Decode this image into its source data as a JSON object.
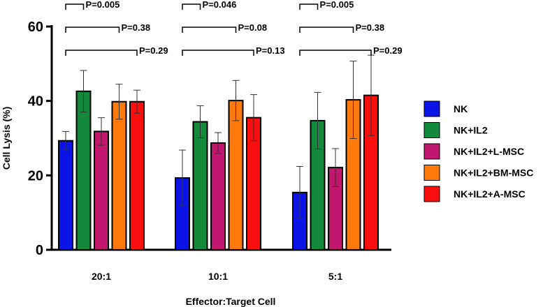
{
  "chart_data": {
    "type": "bar",
    "title": "",
    "xlabel": "Effector:Target Cell",
    "ylabel": "Cell Lysis (%)",
    "ylim": [
      0,
      60
    ],
    "yticks": [
      0,
      20,
      40,
      60
    ],
    "grid": false,
    "legend_position": "right",
    "categories": [
      "20:1",
      "10:1",
      "5:1"
    ],
    "series": [
      {
        "name": "NK",
        "color": "#0a14e6",
        "values": [
          29.3,
          19.3,
          15.4
        ],
        "errors": [
          2.5,
          7.5,
          7.0
        ]
      },
      {
        "name": "NK+IL2",
        "color": "#138a3b",
        "values": [
          42.6,
          34.4,
          34.7
        ],
        "errors": [
          5.6,
          4.3,
          7.6
        ]
      },
      {
        "name": "NK+IL2+L-MSC",
        "color": "#c2176f",
        "values": [
          31.8,
          28.7,
          22.1
        ],
        "errors": [
          3.7,
          2.8,
          5.1
        ]
      },
      {
        "name": "NK+IL2+BM-MSC",
        "color": "#ff7a0a",
        "values": [
          39.8,
          40.1,
          40.3
        ],
        "errors": [
          4.7,
          5.4,
          10.4
        ]
      },
      {
        "name": "NK+IL2+A-MSC",
        "color": "#fb0e0e",
        "values": [
          39.8,
          35.5,
          41.5
        ],
        "errors": [
          3.1,
          6.2,
          10.8
        ]
      }
    ],
    "annotations": [
      {
        "category": "20:1",
        "from_series": 0,
        "to_series": 1,
        "text": "P=0.005"
      },
      {
        "category": "20:1",
        "from_series": 0,
        "to_series": 3,
        "text": "P=0.38"
      },
      {
        "category": "20:1",
        "from_series": 0,
        "to_series": 4,
        "text": "P=0.29"
      },
      {
        "category": "10:1",
        "from_series": 0,
        "to_series": 1,
        "text": "P=0.046"
      },
      {
        "category": "10:1",
        "from_series": 0,
        "to_series": 3,
        "text": "P=0.08"
      },
      {
        "category": "10:1",
        "from_series": 0,
        "to_series": 4,
        "text": "P=0.13"
      },
      {
        "category": "5:1",
        "from_series": 0,
        "to_series": 1,
        "text": "P=0.005"
      },
      {
        "category": "5:1",
        "from_series": 0,
        "to_series": 3,
        "text": "P=0.38"
      },
      {
        "category": "5:1",
        "from_series": 0,
        "to_series": 4,
        "text": "P=0.29"
      }
    ]
  }
}
